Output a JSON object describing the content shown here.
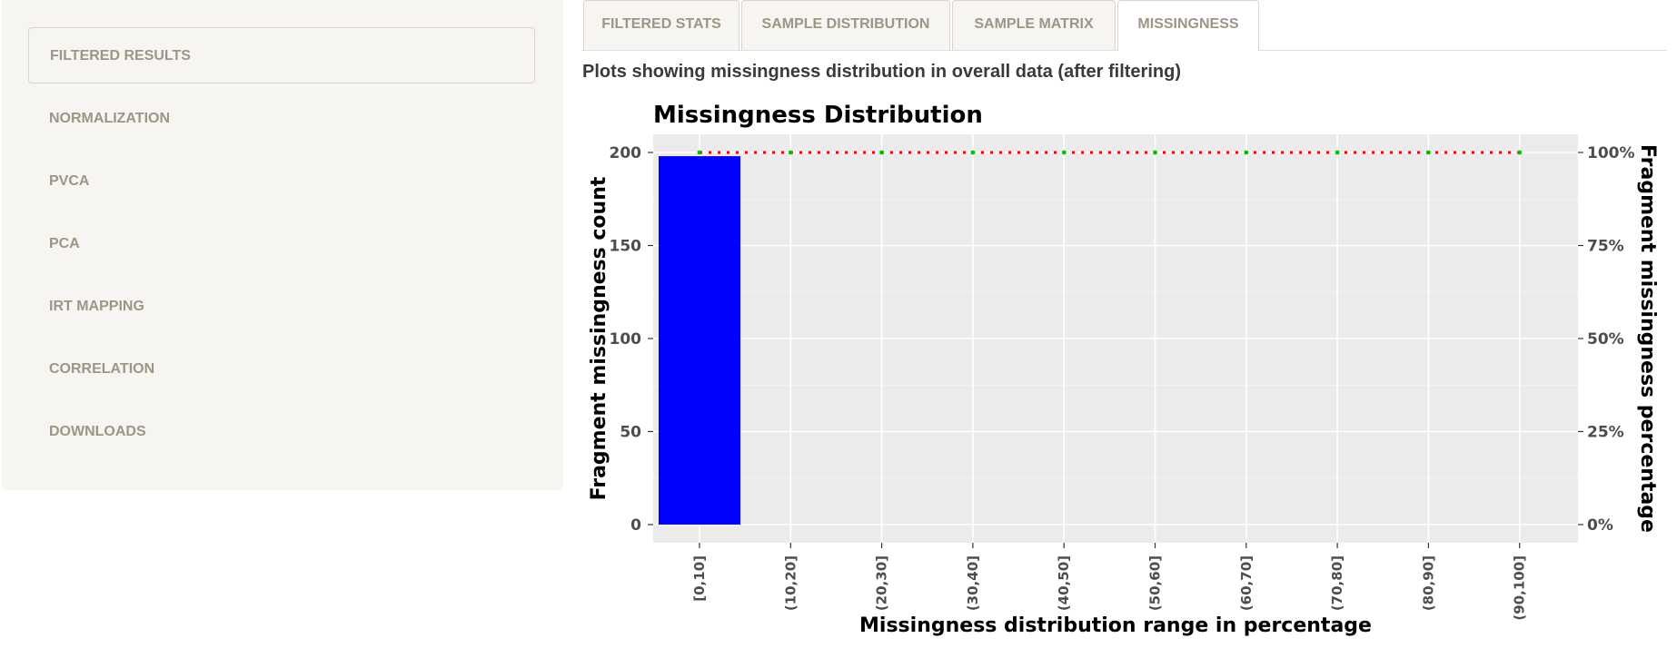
{
  "sidebar": {
    "items": [
      {
        "label": "FILTERED RESULTS",
        "active": true
      },
      {
        "label": "NORMALIZATION"
      },
      {
        "label": "PVCA"
      },
      {
        "label": "PCA"
      },
      {
        "label": "IRT MAPPING"
      },
      {
        "label": "CORRELATION"
      },
      {
        "label": "DOWNLOADS"
      }
    ]
  },
  "tabs": [
    {
      "label": "FILTERED STATS"
    },
    {
      "label": "SAMPLE DISTRIBUTION"
    },
    {
      "label": "SAMPLE MATRIX"
    },
    {
      "label": "MISSINGNESS",
      "active": true
    }
  ],
  "main": {
    "subtitle": "Plots showing missingness distribution in overall data (after filtering)"
  },
  "chart_data": {
    "type": "bar",
    "title": "Missingness Distribution",
    "xlabel": "Missingness distribution range in percentage",
    "ylabel": "Fragment missingness count",
    "y2label": "Fragment missingness percentage",
    "categories": [
      "[0,10]",
      "(10,20]",
      "(20,30]",
      "(30,40]",
      "(40,50]",
      "(50,60]",
      "(60,70]",
      "(70,80]",
      "(80,90]",
      "(90,100]"
    ],
    "series": [
      {
        "type": "bar",
        "values": [
          198,
          0,
          0,
          0,
          0,
          0,
          0,
          0,
          0,
          0
        ],
        "color": "#0000ff"
      },
      {
        "type": "line",
        "axis": "right",
        "values": [
          100,
          100,
          100,
          100,
          100,
          100,
          100,
          100,
          100,
          100
        ],
        "color": "#ff0000",
        "marker_color": "#00c000"
      }
    ],
    "ylim": [
      0,
      200
    ],
    "yticks": [
      0,
      50,
      100,
      150,
      200
    ],
    "y2lim": [
      0,
      100
    ],
    "y2ticks": [
      "0%",
      "25%",
      "50%",
      "75%",
      "100%"
    ],
    "grid": true,
    "panel_background": "#ebebeb"
  }
}
